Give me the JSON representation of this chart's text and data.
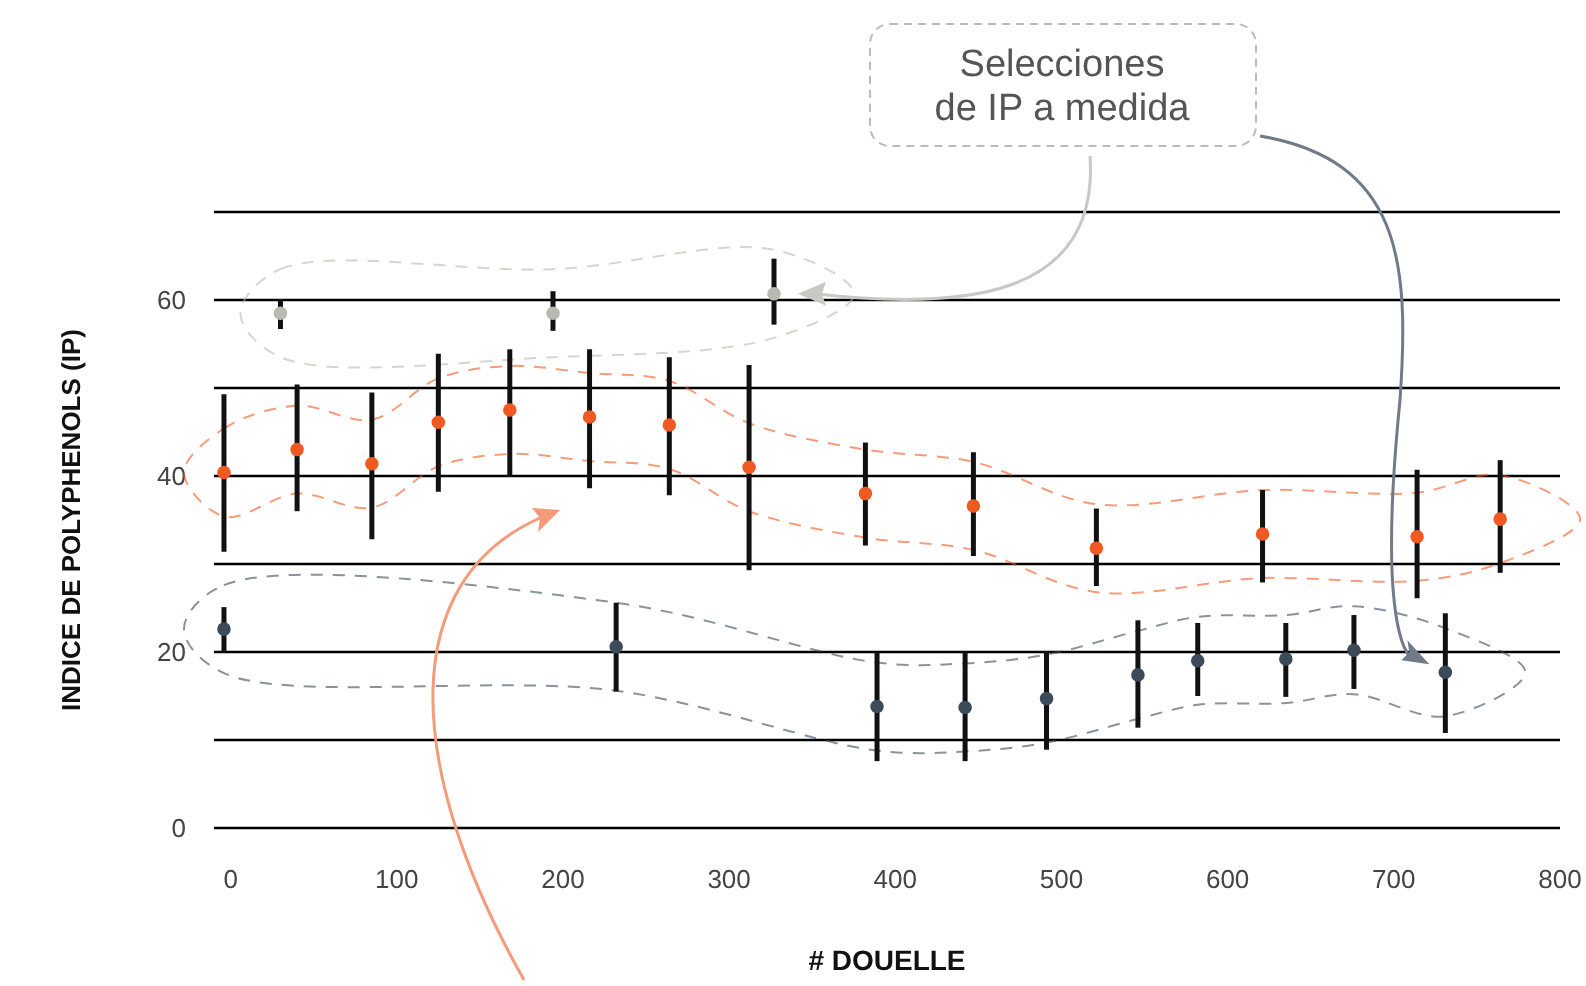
{
  "chart_data": {
    "type": "scatter",
    "xlabel": "# DOUELLE",
    "ylabel": "INDICE DE POLYPHENOLS (IP)",
    "xlim": [
      -10,
      800
    ],
    "xticks": [
      0,
      100,
      200,
      300,
      400,
      500,
      600,
      700,
      800
    ],
    "ylim": [
      0,
      70
    ],
    "yticks": [
      0,
      {
        "value": 10,
        "label": null
      },
      20,
      {
        "value": 30,
        "label": null
      },
      40,
      {
        "value": 50,
        "label": null
      },
      60,
      {
        "value": 70,
        "label": null
      }
    ],
    "grid": "y",
    "marker": "circle",
    "annotations": [
      "Selecciones\nde IP a medida"
    ],
    "series": [
      {
        "color": "#b9b9b2",
        "x": [
          30,
          194,
          327
        ],
        "values": [
          58.5,
          58.5,
          60.7
        ],
        "errors": [
          [
            56.7,
            60.1
          ],
          [
            56.5,
            61.0
          ],
          [
            57.2,
            64.7
          ]
        ]
      },
      {
        "color": "#f05a22",
        "x": [
          -4,
          40,
          85,
          125,
          168,
          216,
          264,
          312,
          382,
          447,
          521,
          621,
          714,
          764
        ],
        "values": [
          40.4,
          43.0,
          41.4,
          46.1,
          47.5,
          46.7,
          45.8,
          41.0,
          38.0,
          36.6,
          31.8,
          33.4,
          33.1,
          35.1
        ],
        "errors": [
          [
            31.4,
            49.3
          ],
          [
            36.0,
            50.4
          ],
          [
            32.8,
            49.5
          ],
          [
            38.2,
            53.9
          ],
          [
            39.9,
            54.4
          ],
          [
            38.6,
            54.4
          ],
          [
            37.8,
            53.5
          ],
          [
            29.3,
            52.6
          ],
          [
            32.1,
            43.8
          ],
          [
            30.9,
            42.7
          ],
          [
            27.5,
            36.3
          ],
          [
            27.9,
            38.4
          ],
          [
            26.1,
            40.7
          ],
          [
            29.0,
            41.8
          ]
        ]
      },
      {
        "color": "#3d4a5a",
        "x": [
          -4,
          232,
          389,
          442,
          491,
          546,
          582,
          635,
          676,
          731
        ],
        "values": [
          22.6,
          20.6,
          13.8,
          13.7,
          14.7,
          17.4,
          19.0,
          19.2,
          20.2,
          17.7
        ],
        "errors": [
          [
            20.0,
            25.1
          ],
          [
            15.5,
            25.6
          ],
          [
            7.6,
            20.0
          ],
          [
            7.6,
            20.0
          ],
          [
            8.9,
            20.0
          ],
          [
            11.4,
            23.6
          ],
          [
            15.0,
            23.3
          ],
          [
            14.9,
            23.3
          ],
          [
            15.8,
            24.2
          ],
          [
            10.8,
            24.4
          ]
        ]
      }
    ]
  }
}
